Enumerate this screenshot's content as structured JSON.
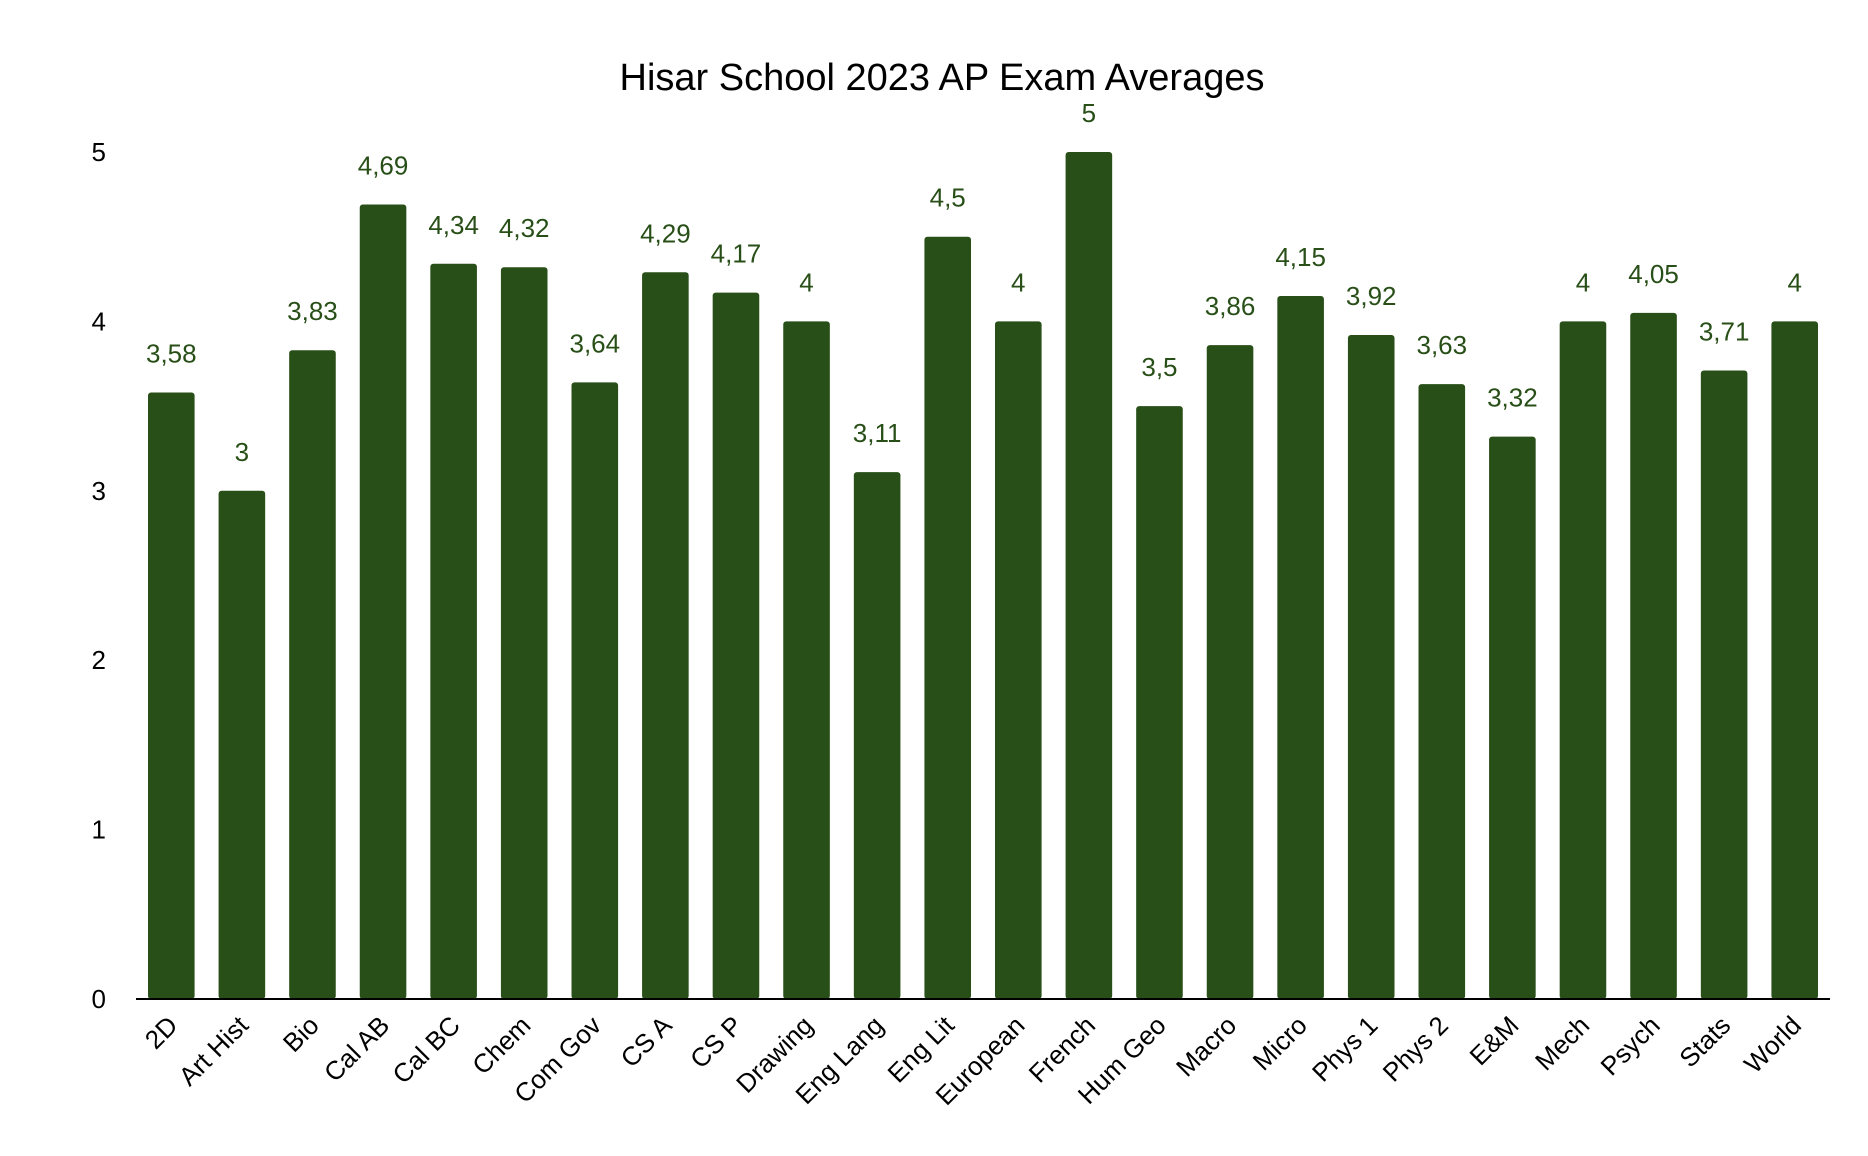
{
  "chart_data": {
    "type": "bar",
    "title": "Hisar School 2023 AP Exam Averages",
    "xlabel": "",
    "ylabel": "",
    "ylim": [
      0,
      5
    ],
    "yticks": [
      "0",
      "1",
      "2",
      "3",
      "4",
      "5"
    ],
    "grid": false,
    "legend": "none",
    "bar_color": "#284f17",
    "label_color": "#284f17",
    "categories": [
      "2D",
      "Art Hist",
      "Bio",
      "Cal AB",
      "Cal BC",
      "Chem",
      "Com Gov",
      "CS A",
      "CS P",
      "Drawing",
      "Eng Lang",
      "Eng Lit",
      "European",
      "French",
      "Hum Geo",
      "Macro",
      "Micro",
      "Phys 1",
      "Phys 2",
      "E&M",
      "Mech",
      "Psych",
      "Stats",
      "World"
    ],
    "values": [
      3.58,
      3,
      3.83,
      4.69,
      4.34,
      4.32,
      3.64,
      4.29,
      4.17,
      4,
      3.11,
      4.5,
      4,
      5,
      3.5,
      3.86,
      4.15,
      3.92,
      3.63,
      3.32,
      4,
      4.05,
      3.71,
      4
    ],
    "data_labels": [
      "3,58",
      "3",
      "3,83",
      "4,69",
      "4,34",
      "4,32",
      "3,64",
      "4,29",
      "4,17",
      "4",
      "3,11",
      "4,5",
      "4",
      "5",
      "3,5",
      "3,86",
      "4,15",
      "3,92",
      "3,63",
      "3,32",
      "4",
      "4,05",
      "3,71",
      "4"
    ]
  }
}
